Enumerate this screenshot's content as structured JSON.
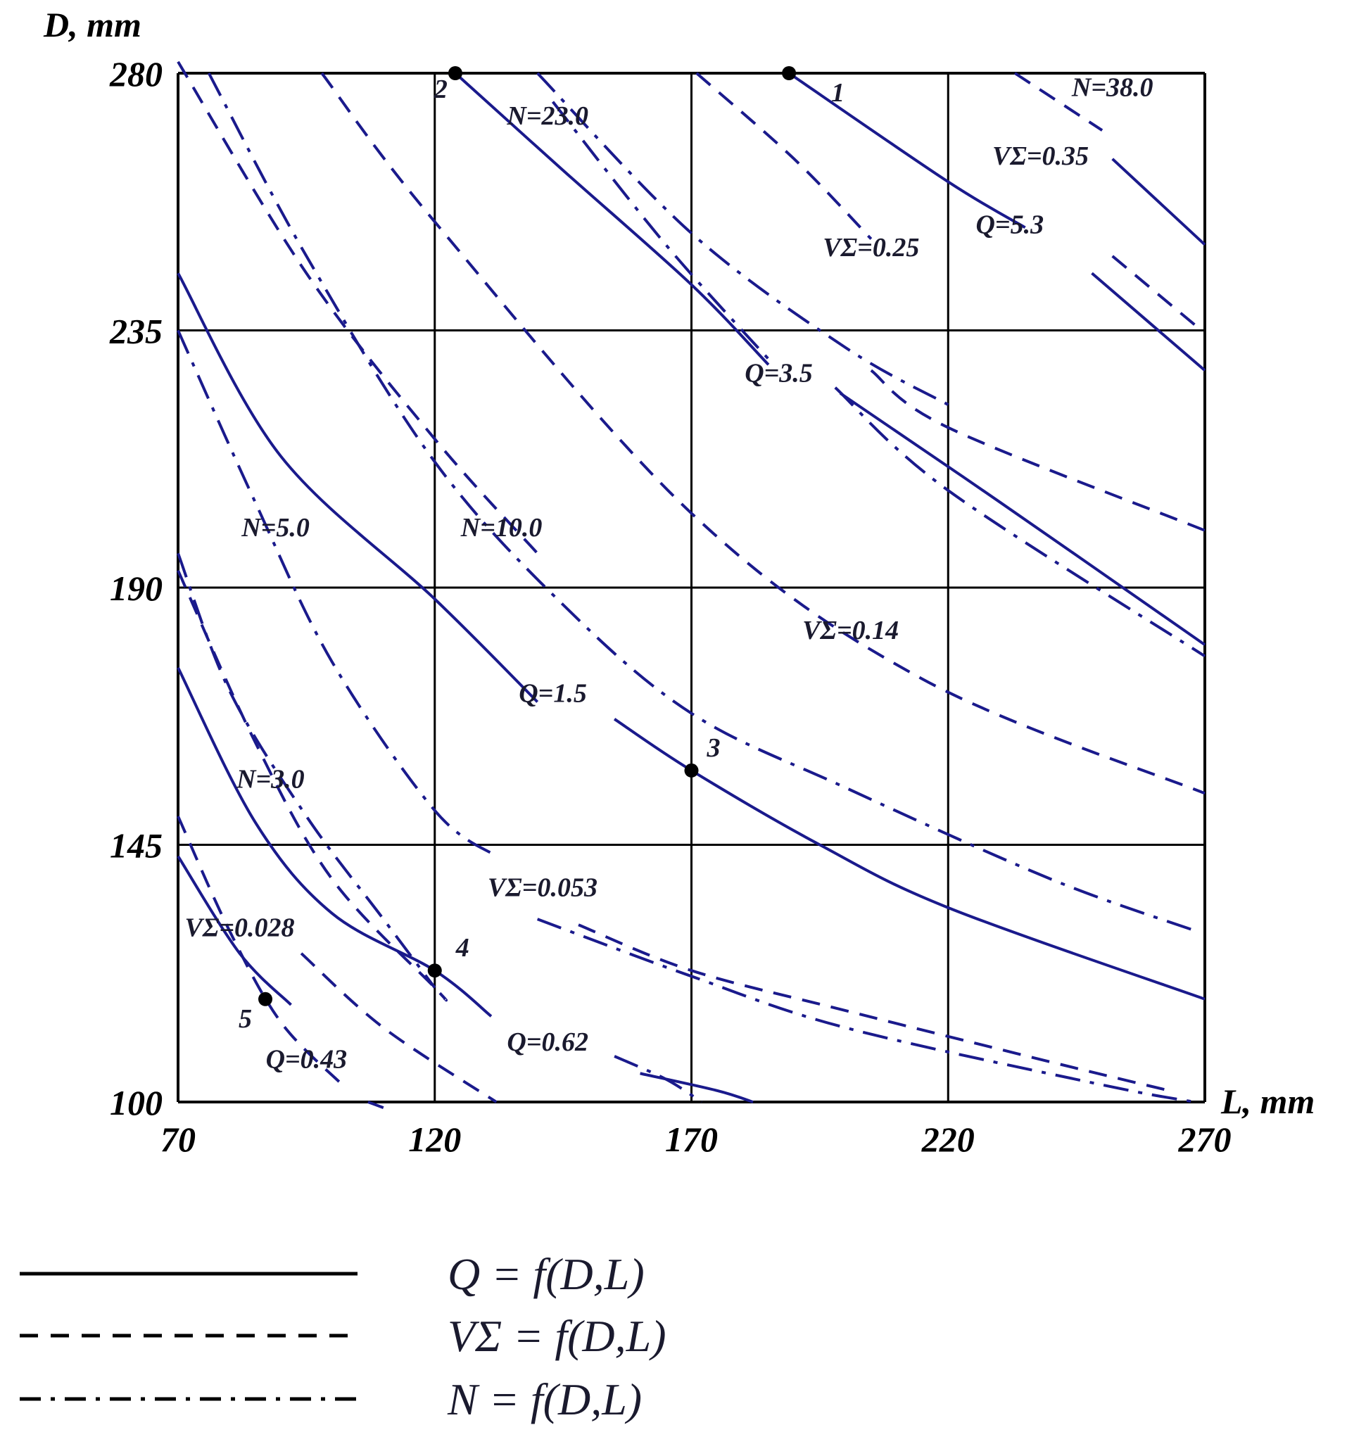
{
  "chart_data": {
    "type": "line",
    "xlabel": "L, mm",
    "ylabel": "D, mm",
    "xlim": [
      70,
      270
    ],
    "ylim": [
      100,
      280
    ],
    "x_ticks": [
      "70",
      "120",
      "170",
      "220",
      "270"
    ],
    "y_ticks": [
      "280",
      "235",
      "190",
      "145",
      "100"
    ],
    "grid": true,
    "line_color": "#1a1a8c",
    "series": [
      {
        "name": "Q=0.43",
        "style": "solid",
        "points": [
          [
            70,
            143
          ],
          [
            82,
            126
          ],
          [
            92,
            117
          ]
        ]
      },
      {
        "name": "Q=0.62",
        "style": "solid",
        "points": [
          [
            70,
            176
          ],
          [
            85,
            149
          ],
          [
            100,
            133
          ],
          [
            120,
            123
          ],
          [
            131,
            115
          ]
        ]
      },
      {
        "name": "Q=1.5",
        "style": "solid",
        "points": [
          [
            70,
            245
          ],
          [
            90,
            213
          ],
          [
            120,
            188
          ],
          [
            140,
            170
          ]
        ]
      },
      {
        "name": "Q=1.5",
        "style": "solid",
        "points": [
          [
            155,
            167
          ],
          [
            170,
            158
          ],
          [
            195,
            145
          ],
          [
            220,
            134
          ],
          [
            270,
            118
          ]
        ]
      },
      {
        "name": "Q=3.5",
        "style": "solid",
        "points": [
          [
            124,
            280
          ],
          [
            145,
            263
          ],
          [
            170,
            243
          ],
          [
            185,
            229
          ]
        ]
      },
      {
        "name": "Q=3.5",
        "style": "solid",
        "points": [
          [
            199,
            224
          ],
          [
            230,
            205
          ],
          [
            270,
            180
          ]
        ]
      },
      {
        "name": "Q=5.3",
        "style": "solid",
        "points": [
          [
            189,
            280
          ],
          [
            220,
            261
          ],
          [
            235,
            253
          ]
        ]
      },
      {
        "name": "Q=5.3",
        "style": "solid",
        "points": [
          [
            248,
            245
          ],
          [
            270,
            228
          ]
        ]
      },
      {
        "name": "N=38.0",
        "style": "solid",
        "points": [
          [
            252,
            265
          ],
          [
            270,
            250
          ]
        ]
      },
      {
        "name": "Q=0.62",
        "style": "solid",
        "points": [
          [
            160,
            105
          ],
          [
            175,
            102
          ],
          [
            182,
            100
          ]
        ]
      },
      {
        "name": "Q=0.43",
        "style": "solid",
        "points": [
          [
            107,
            100
          ],
          [
            110,
            99
          ]
        ]
      },
      {
        "name": "VΣ=0.028",
        "style": "dashed",
        "points": [
          [
            70,
            193
          ],
          [
            85,
            163
          ],
          [
            100,
            139
          ],
          [
            120,
            120
          ],
          [
            122,
            118
          ]
        ]
      },
      {
        "name": "VΣ=0.053",
        "style": "dashed",
        "points": [
          [
            70,
            282
          ],
          [
            95,
            245
          ],
          [
            120,
            216
          ],
          [
            140,
            196
          ]
        ]
      },
      {
        "name": "VΣ=0.053",
        "style": "dashed",
        "points": [
          [
            148,
            131
          ],
          [
            170,
            123
          ],
          [
            200,
            116
          ],
          [
            240,
            107
          ],
          [
            263,
            102
          ]
        ]
      },
      {
        "name": "VΣ=0.14",
        "style": "dashed",
        "points": [
          [
            98,
            280
          ],
          [
            120,
            254
          ],
          [
            170,
            203
          ],
          [
            215,
            174
          ],
          [
            270,
            154
          ]
        ]
      },
      {
        "name": "VΣ=0.25",
        "style": "dashed",
        "points": [
          [
            171,
            280
          ],
          [
            190,
            265
          ],
          [
            205,
            251
          ]
        ]
      },
      {
        "name": "VΣ=0.25",
        "style": "dashed",
        "points": [
          [
            205,
            228
          ],
          [
            220,
            218
          ],
          [
            270,
            200
          ]
        ]
      },
      {
        "name": "VΣ=0.35",
        "style": "dashed",
        "points": [
          [
            233,
            280
          ],
          [
            250,
            270
          ]
        ]
      },
      {
        "name": "VΣ=0.35",
        "style": "dashed",
        "points": [
          [
            252,
            248
          ],
          [
            268,
            236
          ]
        ]
      },
      {
        "name": "VΣ=0.028",
        "style": "dashed",
        "points": [
          [
            70,
            150
          ],
          [
            80,
            130
          ],
          [
            90,
            114
          ],
          [
            102,
            103
          ]
        ]
      },
      {
        "name": "VΣ=0.053",
        "style": "dashed",
        "points": [
          [
            94,
            126
          ],
          [
            110,
            113
          ],
          [
            132,
            100
          ]
        ]
      },
      {
        "name": "N=3.0",
        "style": "dashdot",
        "points": [
          [
            70,
            196
          ],
          [
            80,
            172
          ],
          [
            95,
            150
          ],
          [
            110,
            132
          ],
          [
            120,
            120
          ]
        ]
      },
      {
        "name": "N=5.0",
        "style": "dashdot",
        "points": [
          [
            70,
            235
          ],
          [
            85,
            205
          ],
          [
            100,
            177
          ],
          [
            120,
            151
          ],
          [
            132,
            143
          ]
        ]
      },
      {
        "name": "N=10.0",
        "style": "dashdot",
        "points": [
          [
            76,
            280
          ],
          [
            95,
            248
          ],
          [
            120,
            212
          ],
          [
            145,
            187
          ],
          [
            170,
            168
          ],
          [
            200,
            155
          ],
          [
            240,
            139
          ],
          [
            268,
            130
          ]
        ]
      },
      {
        "name": "N=23.0",
        "style": "dashdot",
        "points": [
          [
            143,
            275
          ],
          [
            165,
            250
          ],
          [
            186,
            229
          ]
        ]
      },
      {
        "name": "N=23.0",
        "style": "dashdot",
        "points": [
          [
            198,
            225
          ],
          [
            220,
            207
          ],
          [
            270,
            178
          ]
        ]
      },
      {
        "name": "N=38.0",
        "style": "dashdot",
        "points": [
          [
            140,
            280
          ],
          [
            170,
            252
          ],
          [
            200,
            232
          ],
          [
            220,
            222
          ]
        ]
      },
      {
        "name": "N=3.0",
        "style": "dashdot",
        "points": [
          [
            140,
            132
          ],
          [
            170,
            122
          ],
          [
            200,
            113
          ],
          [
            250,
            103
          ],
          [
            268,
            100
          ]
        ]
      },
      {
        "name": "N=5.0",
        "style": "dashdot",
        "points": [
          [
            155,
            108
          ],
          [
            165,
            104
          ],
          [
            172,
            100
          ]
        ]
      }
    ],
    "points": [
      {
        "label": "1",
        "x": 189,
        "y": 280
      },
      {
        "label": "2",
        "x": 124,
        "y": 280
      },
      {
        "label": "3",
        "x": 170,
        "y": 158
      },
      {
        "label": "4",
        "x": 120,
        "y": 123
      },
      {
        "label": "5",
        "x": 87,
        "y": 118
      }
    ],
    "annotations": [
      {
        "text": "N=23.0",
        "x": 142,
        "y": 271
      },
      {
        "text": "N=38.0",
        "x": 252,
        "y": 276
      },
      {
        "text": "VΣ=0.35",
        "x": 238,
        "y": 264
      },
      {
        "text": "VΣ=0.25",
        "x": 205,
        "y": 248
      },
      {
        "text": "Q=5.3",
        "x": 232,
        "y": 252
      },
      {
        "text": "Q=3.5",
        "x": 187,
        "y": 226
      },
      {
        "text": "N=5.0",
        "x": 89,
        "y": 199
      },
      {
        "text": "N=10.0",
        "x": 133,
        "y": 199
      },
      {
        "text": "VΣ=0.14",
        "x": 201,
        "y": 181
      },
      {
        "text": "Q=1.5",
        "x": 143,
        "y": 170
      },
      {
        "text": "N=3.0",
        "x": 88,
        "y": 155
      },
      {
        "text": "VΣ=0.053",
        "x": 141,
        "y": 136
      },
      {
        "text": "VΣ=0.028",
        "x": 82,
        "y": 129
      },
      {
        "text": "Q=0.43",
        "x": 95,
        "y": 106
      },
      {
        "text": "Q=0.62",
        "x": 142,
        "y": 109
      }
    ]
  },
  "legend": [
    {
      "style": "solid",
      "text": "Q = f(D,L)"
    },
    {
      "style": "dashed",
      "text": "VΣ = f(D,L)"
    },
    {
      "style": "dashdot",
      "text": "N = f(D,L)"
    }
  ]
}
